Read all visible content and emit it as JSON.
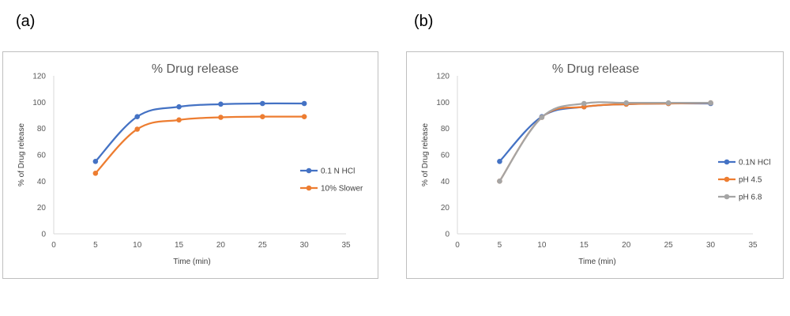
{
  "panels": {
    "a_label": "(a)",
    "b_label": "(b)"
  },
  "chart_data": [
    {
      "type": "line",
      "panel": "(a)",
      "title": "% Drug release",
      "xlabel": "Time (min)",
      "ylabel": "% of Drug release",
      "xlim": [
        0,
        35
      ],
      "ylim": [
        0,
        120
      ],
      "xticks": [
        0,
        5,
        10,
        15,
        20,
        25,
        30,
        35
      ],
      "yticks": [
        0,
        20,
        40,
        60,
        80,
        100,
        120
      ],
      "grid": false,
      "legend_position": "right",
      "series": [
        {
          "name": "0.1 N HCl",
          "color": "#4472c4",
          "x": [
            5,
            10,
            15,
            20,
            25,
            30
          ],
          "y": [
            55,
            89,
            96.5,
            98.5,
            99,
            99
          ]
        },
        {
          "name": "10% Slower",
          "color": "#ed7d31",
          "x": [
            5,
            10,
            15,
            20,
            25,
            30
          ],
          "y": [
            46,
            79.5,
            86.5,
            88.5,
            89,
            89
          ]
        }
      ]
    },
    {
      "type": "line",
      "panel": "(b)",
      "title": "% Drug release",
      "xlabel": "Time (min)",
      "ylabel": "% of Drug release",
      "xlim": [
        0,
        35
      ],
      "ylim": [
        0,
        120
      ],
      "xticks": [
        0,
        5,
        10,
        15,
        20,
        25,
        30,
        35
      ],
      "yticks": [
        0,
        20,
        40,
        60,
        80,
        100,
        120
      ],
      "grid": false,
      "legend_position": "right",
      "series": [
        {
          "name": "0.1N HCl",
          "color": "#4472c4",
          "x": [
            5,
            10,
            15,
            20,
            25,
            30
          ],
          "y": [
            55,
            89,
            96.5,
            98.5,
            99,
            99
          ]
        },
        {
          "name": "pH 4.5",
          "color": "#ed7d31",
          "x": [
            5,
            10,
            15,
            20,
            25,
            30
          ],
          "y": [
            40,
            88.5,
            96.5,
            98.5,
            99,
            99.5
          ]
        },
        {
          "name": "pH 6.8",
          "color": "#a5a5a5",
          "x": [
            5,
            10,
            15,
            20,
            25,
            30
          ],
          "y": [
            40,
            88.5,
            99,
            99.5,
            99.5,
            99.5
          ]
        }
      ]
    }
  ]
}
